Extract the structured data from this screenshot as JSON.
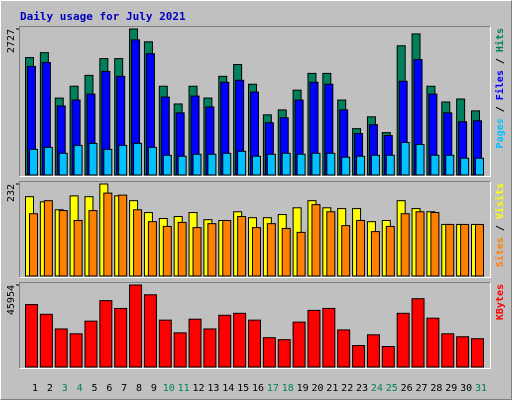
{
  "title": "Daily usage for July 2021",
  "chart_data": [
    {
      "type": "bar",
      "ylim": [
        0,
        2727
      ],
      "yticks": [
        2727
      ],
      "separator": " / ",
      "series": [
        {
          "name": "Hits",
          "color": "#00805c",
          "values": [
            2193,
            2285,
            1437,
            1658,
            1861,
            2174,
            2174,
            2727,
            2488,
            1658,
            1327,
            1658,
            1437,
            1843,
            2064,
            1695,
            1124,
            1216,
            1585,
            1898,
            1898,
            1400,
            866,
            1087,
            792,
            2414,
            2635,
            1658,
            1364,
            1419,
            1198
          ]
        },
        {
          "name": "Files",
          "color": "#0000ff",
          "values": [
            2027,
            2101,
            1290,
            1400,
            1511,
            1935,
            1843,
            2524,
            2266,
            1456,
            1161,
            1474,
            1271,
            1732,
            1769,
            1548,
            977,
            1069,
            1400,
            1732,
            1695,
            1216,
            774,
            940,
            737,
            1751,
            2156,
            1511,
            1161,
            995,
            1013
          ]
        },
        {
          "name": "Pages",
          "color": "#00c0ff",
          "values": [
            479,
            516,
            405,
            553,
            590,
            479,
            553,
            590,
            516,
            368,
            350,
            387,
            387,
            405,
            442,
            350,
            387,
            405,
            387,
            405,
            405,
            332,
            350,
            368,
            368,
            608,
            571,
            368,
            368,
            313,
            313
          ]
        }
      ]
    },
    {
      "type": "bar",
      "ylim": [
        0,
        232
      ],
      "yticks": [
        232
      ],
      "separator": " / ",
      "series": [
        {
          "name": "Visits",
          "color": "#ffff00",
          "values": [
            200,
            187,
            167,
            202,
            200,
            232,
            202,
            190,
            160,
            145,
            150,
            160,
            142,
            140,
            162,
            147,
            147,
            155,
            172,
            190,
            172,
            170,
            170,
            137,
            140,
            190,
            170,
            162,
            130,
            130,
            130
          ]
        },
        {
          "name": "Sites",
          "color": "#ff8000",
          "values": [
            157,
            190,
            165,
            140,
            165,
            209,
            204,
            167,
            137,
            125,
            135,
            122,
            132,
            140,
            150,
            122,
            132,
            120,
            110,
            180,
            162,
            127,
            140,
            112,
            125,
            157,
            162,
            160,
            130,
            130,
            130
          ]
        }
      ]
    },
    {
      "type": "bar",
      "ylim": [
        0,
        45954
      ],
      "yticks": [
        45954
      ],
      "categories": [
        "1",
        "2",
        "3",
        "4",
        "5",
        "6",
        "7",
        "8",
        "9",
        "10",
        "11",
        "12",
        "13",
        "14",
        "15",
        "16",
        "17",
        "18",
        "19",
        "20",
        "21",
        "22",
        "23",
        "24",
        "25",
        "26",
        "27",
        "28",
        "29",
        "30",
        "31"
      ],
      "category_colors": [
        "#000000",
        "#000000",
        "#00805c",
        "#00805c",
        "#000000",
        "#000000",
        "#000000",
        "#000000",
        "#000000",
        "#00805c",
        "#00805c",
        "#000000",
        "#000000",
        "#000000",
        "#000000",
        "#000000",
        "#00805c",
        "#00805c",
        "#000000",
        "#000000",
        "#000000",
        "#000000",
        "#000000",
        "#00805c",
        "#00805c",
        "#000000",
        "#000000",
        "#000000",
        "#000000",
        "#000000",
        "#00805c"
      ],
      "series": [
        {
          "name": "KBytes",
          "color": "#ff0000",
          "values": [
            35000,
            29540,
            21330,
            18600,
            25700,
            37200,
            32820,
            45954,
            40480,
            26260,
            19150,
            26800,
            21330,
            28990,
            30090,
            26260,
            16410,
            15320,
            25160,
            31730,
            32820,
            20790,
            12030,
            18050,
            11490,
            30090,
            38290,
            27350,
            18600,
            16960,
            15860
          ]
        }
      ]
    }
  ]
}
